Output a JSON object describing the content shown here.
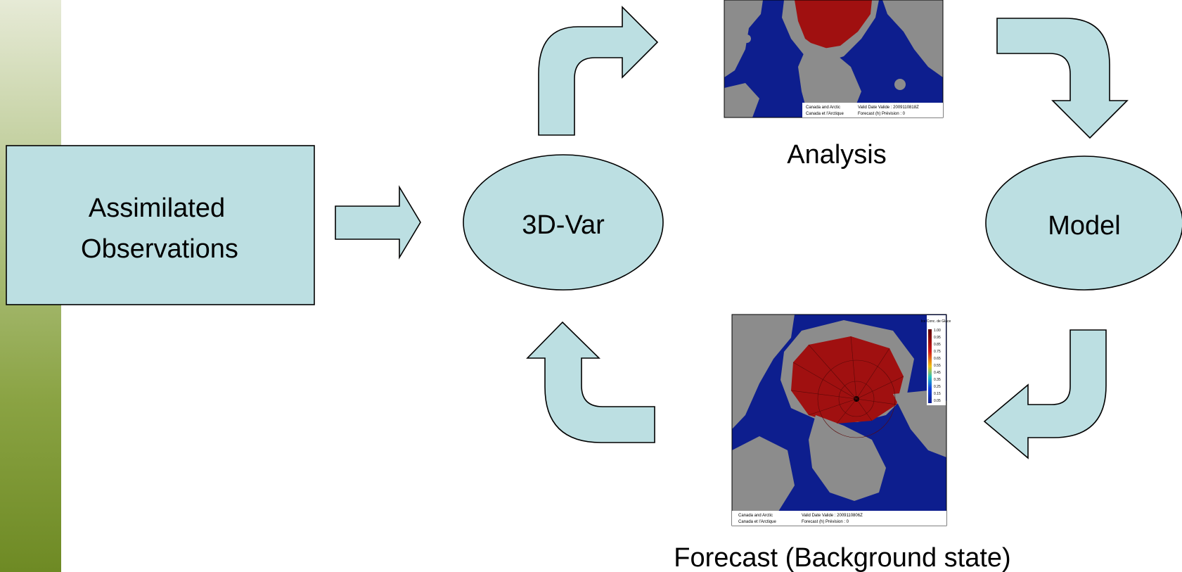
{
  "nodes": {
    "observations": {
      "line1": "Assimilated",
      "line2": "Observations"
    },
    "var3d": {
      "label": "3D-Var"
    },
    "model": {
      "label": "Model"
    }
  },
  "maps": {
    "analysis": {
      "caption": "Analysis",
      "footer_left_1": "Canada and Arctic",
      "footer_left_2": "Canada et l'Arctique",
      "footer_right_1": "Valid Date Valide :  2009110818Z",
      "footer_right_2": "Forecast (h) Prévision :   0"
    },
    "forecast": {
      "caption": "Forecast (Background state)",
      "footer_left_1": "Canada and Arctic",
      "footer_left_2": "Canada et l'Arctique",
      "footer_right_1": "Valid Date Valide :  2009110806Z",
      "footer_right_2": "Forecast (h) Prévision :   0",
      "legend_title": "Ice Conc. de Glace",
      "legend_ticks": [
        "1.00",
        "0.95",
        "0.85",
        "0.75",
        "0.65",
        "0.55",
        "0.45",
        "0.35",
        "0.25",
        "0.15",
        "0.05"
      ]
    }
  },
  "colors": {
    "shape_fill": "#bcdfe2",
    "ocean": "#0d1e8e",
    "land": "#8c8c8c",
    "ice": "#a01010"
  }
}
